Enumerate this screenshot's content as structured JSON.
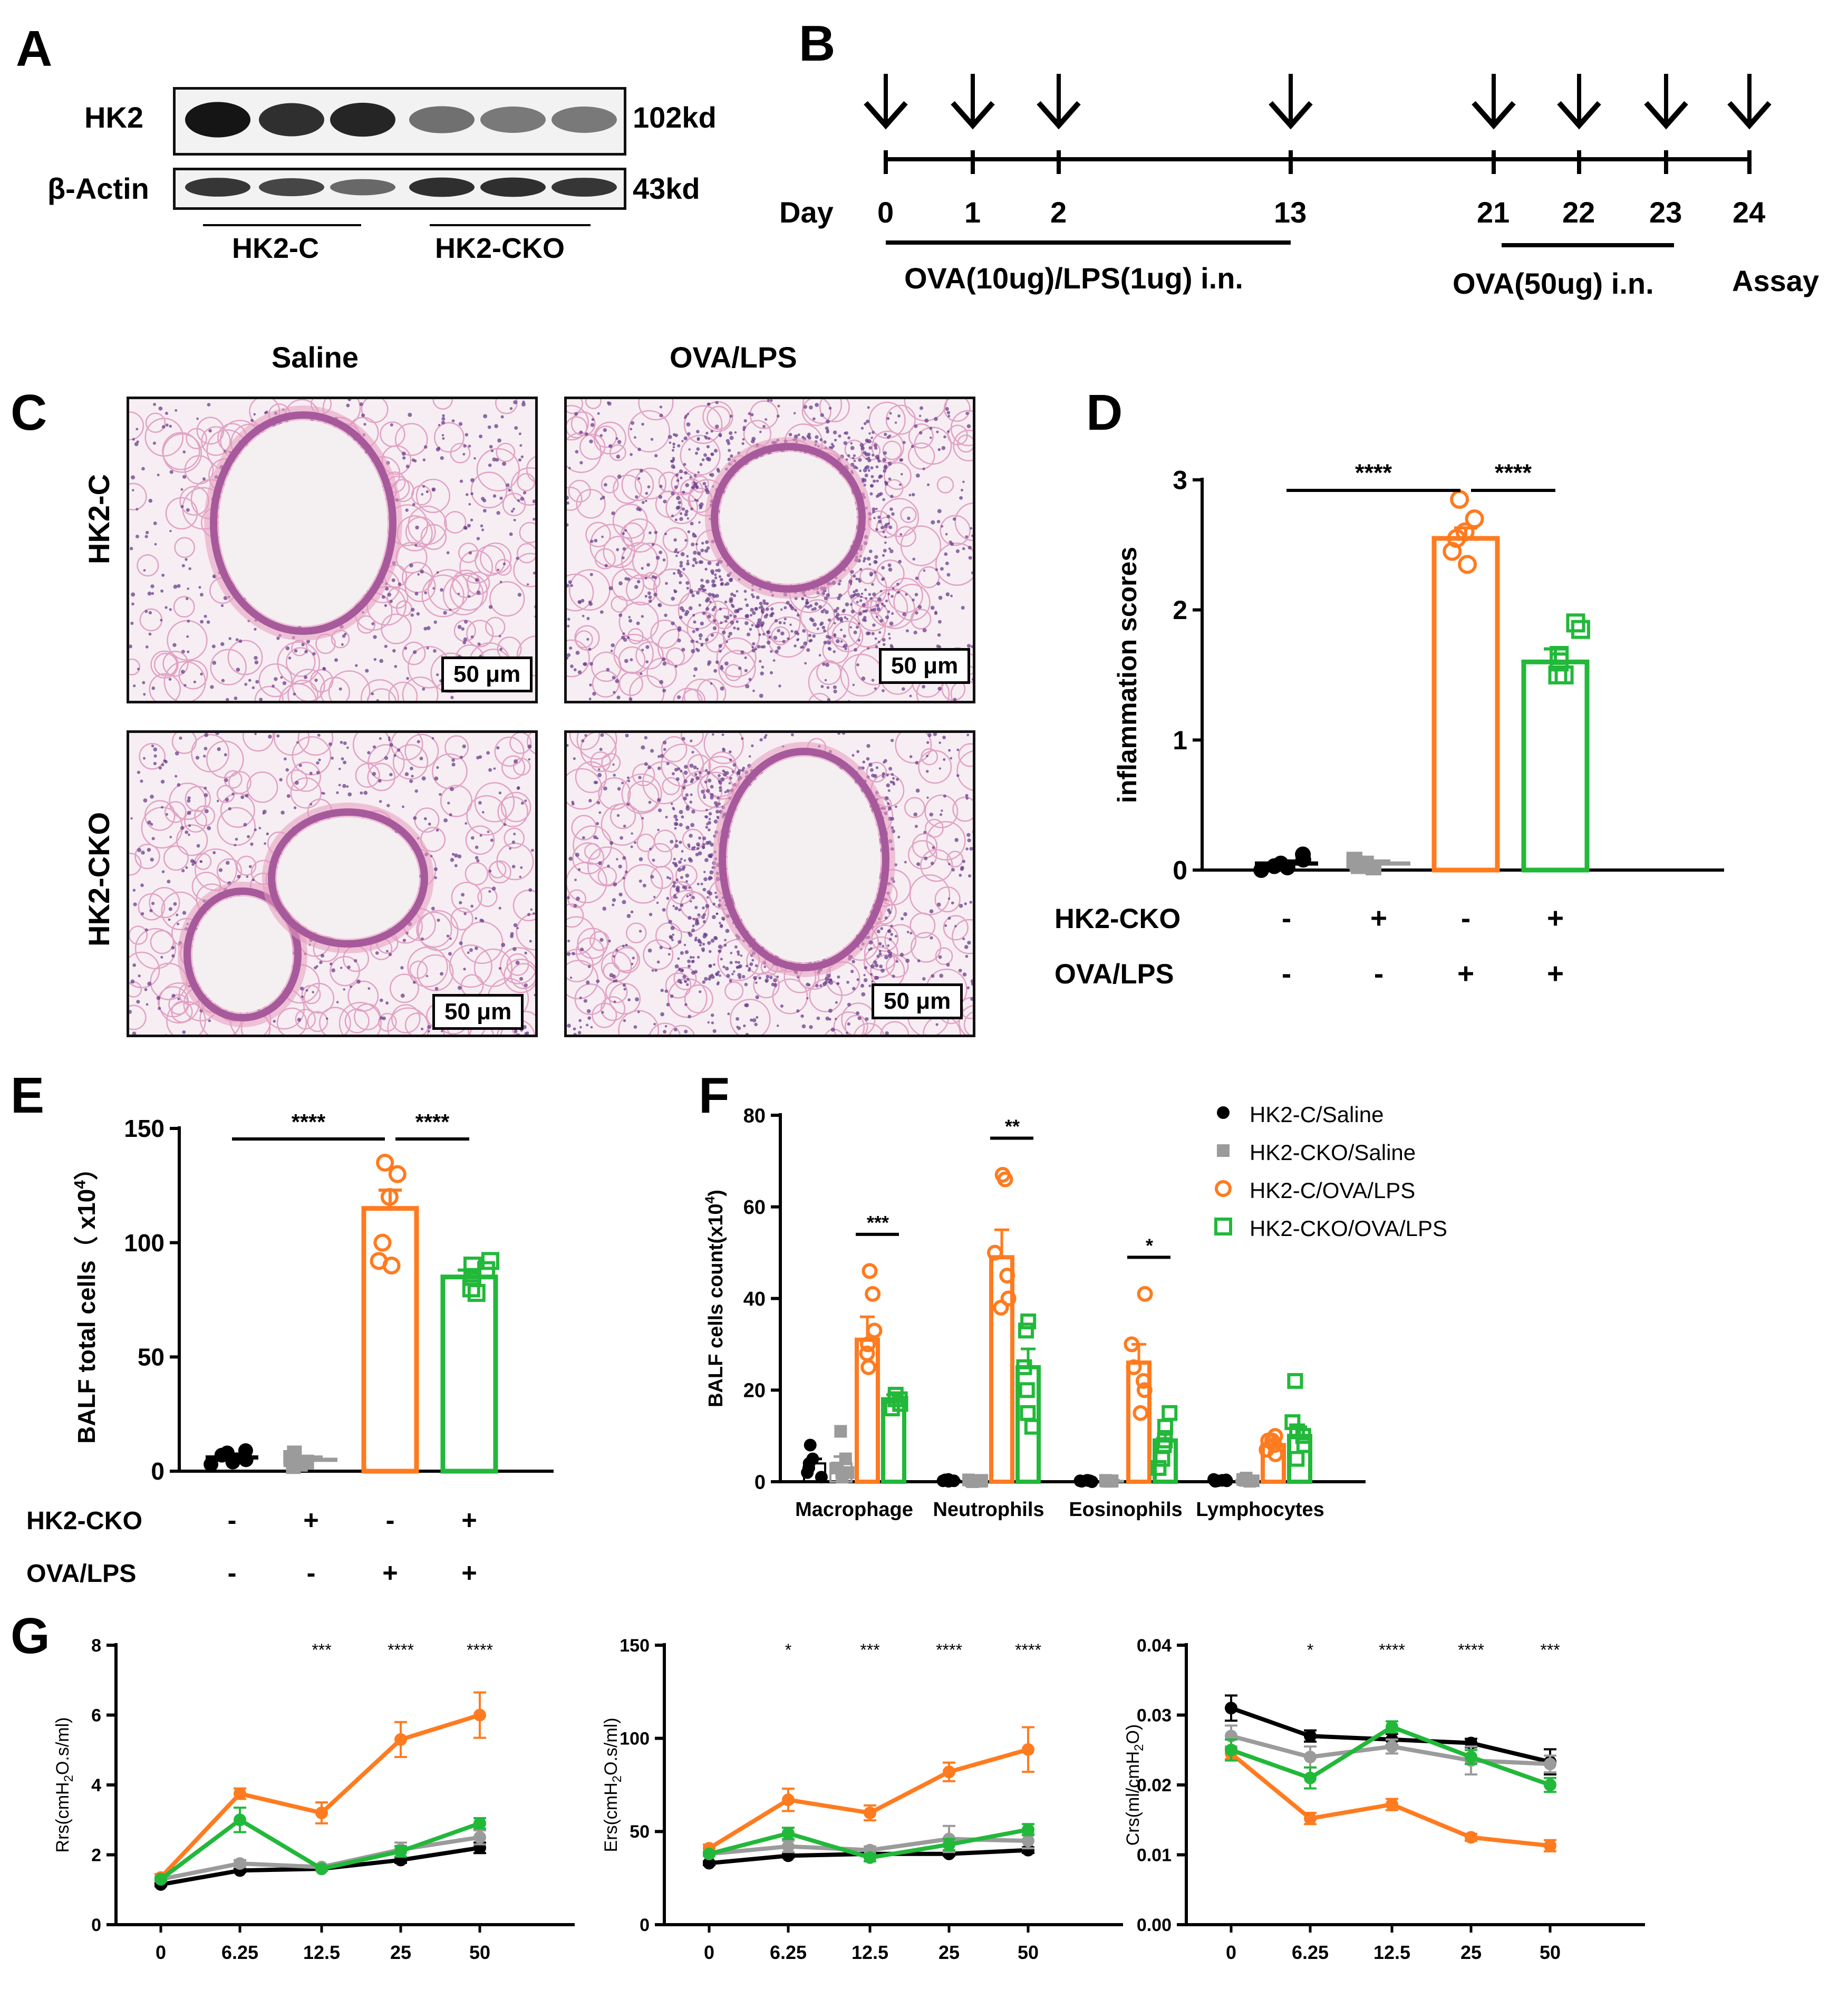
{
  "panels": {
    "a": "A",
    "b": "B",
    "c": "C",
    "d": "D",
    "e": "E",
    "f": "F",
    "g": "G"
  },
  "blot": {
    "rows": [
      {
        "label": "HK2",
        "size": "102kd"
      },
      {
        "label": "β-Actin",
        "size": "43kd"
      }
    ],
    "groups": [
      "HK2-C",
      "HK2-CKO"
    ],
    "band_intensity": {
      "HK2": [
        1.0,
        0.85,
        0.9,
        0.45,
        0.4,
        0.4
      ],
      "beta_actin": [
        0.8,
        0.7,
        0.5,
        0.85,
        0.85,
        0.8
      ]
    }
  },
  "timeline": {
    "day_label": "Day",
    "days": [
      "0",
      "1",
      "2",
      "13",
      "21",
      "22",
      "23",
      "24"
    ],
    "day_values": [
      0,
      1,
      2,
      13,
      21,
      22,
      23,
      24
    ],
    "arrows_on": [
      0,
      1,
      2,
      13,
      21,
      22,
      23,
      24
    ],
    "phase1": "OVA(10ug)/LPS(1ug) i.n.",
    "phase2": "OVA(50ug) i.n.",
    "assay": "Assay"
  },
  "histology": {
    "cols": [
      "Saline",
      "OVA/LPS"
    ],
    "rows": [
      "HK2-C",
      "HK2-CKO"
    ],
    "scale": "50 μm"
  },
  "conditions": {
    "rows": [
      "HK2-CKO",
      "OVA/LPS"
    ],
    "hk2cko": [
      "-",
      "+",
      "-",
      "+"
    ],
    "ovalps": [
      "-",
      "-",
      "+",
      "+"
    ]
  },
  "colors": {
    "hk2c_saline": "#000000",
    "hk2cko_saline": "#9b9b9b",
    "hk2c_ova": "#ff7b1f",
    "hk2cko_ova": "#22b83a"
  },
  "legend": [
    "HK2-C/Saline",
    "HK2-CKO/Saline",
    "HK2-C/OVA/LPS",
    "HK2-CKO/OVA/LPS"
  ],
  "chart_data": [
    {
      "id": "D",
      "type": "bar",
      "ylabel": "inflammation scores",
      "yticks": [
        "0",
        "1",
        "2",
        "3"
      ],
      "ylim": [
        0,
        3
      ],
      "values": [
        0.05,
        0.05,
        2.55,
        1.6
      ],
      "errors": [
        0.02,
        0.02,
        0.08,
        0.1
      ],
      "points": [
        [
          0.0,
          0.05,
          0.08,
          0.02,
          0.12,
          0.03
        ],
        [
          0.05,
          0.08,
          0.03,
          0.02,
          0.07,
          0.05
        ],
        [
          2.85,
          2.7,
          2.55,
          2.45,
          2.35,
          2.6
        ],
        [
          1.85,
          1.9,
          1.65,
          1.5,
          1.5,
          1.6
        ]
      ],
      "sig": [
        {
          "from": 0,
          "to": 2,
          "label": "****"
        },
        {
          "from": 2,
          "to": 3,
          "label": "****"
        }
      ]
    },
    {
      "id": "E",
      "type": "bar",
      "ylabel": "BALF total cells（ x10^4）",
      "yticks": [
        "0",
        "50",
        "100",
        "150"
      ],
      "ylim": [
        0,
        150
      ],
      "values": [
        6,
        5,
        115,
        85
      ],
      "errors": [
        1.5,
        1.2,
        8,
        3
      ],
      "points": [
        [
          3,
          8,
          5,
          4,
          9,
          7
        ],
        [
          2,
          5,
          8,
          4,
          6,
          3
        ],
        [
          135,
          130,
          100,
          92,
          90,
          120
        ],
        [
          92,
          88,
          85,
          80,
          78,
          90
        ]
      ],
      "sig": [
        {
          "from": 0,
          "to": 2,
          "label": "****"
        },
        {
          "from": 2,
          "to": 3,
          "label": "****"
        }
      ]
    },
    {
      "id": "F",
      "type": "bar",
      "ylabel": "BALF cells count(x10^4)",
      "yticks": [
        "0",
        "20",
        "40",
        "60",
        "80"
      ],
      "ylim": [
        0,
        80
      ],
      "categories": [
        "Macrophage",
        "Neutrophils",
        "Eosinophils",
        "Lymphocytes"
      ],
      "series": [
        {
          "name": "HK2-C/Saline",
          "values": [
            4,
            0.3,
            0.2,
            0.3
          ]
        },
        {
          "name": "HK2-CKO/Saline",
          "values": [
            4,
            0.2,
            0.2,
            0.4
          ]
        },
        {
          "name": "HK2-C/OVA/LPS",
          "values": [
            31,
            49,
            26,
            8
          ]
        },
        {
          "name": "HK2-CKO/OVA/LPS",
          "values": [
            18,
            25,
            9,
            10
          ]
        }
      ],
      "errors": [
        [
          1,
          0.1,
          0.1,
          0.1
        ],
        [
          1.5,
          0.1,
          0.1,
          0.2
        ],
        [
          5,
          6,
          4,
          1
        ],
        [
          1,
          4,
          2,
          2
        ]
      ],
      "points": [
        [
          [
            2,
            8,
            3,
            5,
            1,
            4
          ],
          [
            0.1,
            0.3,
            0.5,
            0.2,
            0.4,
            0.2
          ],
          [
            0,
            0.2,
            0.3,
            0.1,
            0.2,
            0.3
          ],
          [
            0.2,
            0.5,
            0.3,
            0.4,
            0.1,
            0.2
          ]
        ],
        [
          [
            2,
            11,
            5,
            3,
            2,
            1
          ],
          [
            0,
            0.2,
            0.3,
            0.1,
            0.2,
            0.4
          ],
          [
            0.1,
            0.2,
            0.3,
            0.2,
            0.1,
            0.2
          ],
          [
            0.1,
            0.8,
            0.5,
            0.3,
            0.4,
            0.2
          ]
        ],
        [
          [
            46,
            41,
            30,
            25,
            28,
            33
          ],
          [
            67,
            66,
            50,
            45,
            40,
            38
          ],
          [
            41,
            30,
            25,
            20,
            15,
            22
          ],
          [
            10,
            9,
            7,
            6,
            8,
            9
          ]
        ],
        [
          [
            18,
            17,
            16,
            18,
            19,
            17
          ],
          [
            35,
            33,
            25,
            15,
            12,
            20
          ],
          [
            15,
            12,
            8,
            5,
            3,
            9
          ],
          [
            22,
            13,
            10,
            8,
            5,
            11
          ]
        ]
      ],
      "sig": [
        {
          "cat": 0,
          "label": "***"
        },
        {
          "cat": 1,
          "label": "**"
        },
        {
          "cat": 2,
          "label": "*"
        }
      ]
    },
    {
      "id": "G1",
      "type": "line",
      "ylabel": "Rrs(cmH2O.s/ml)",
      "xticks": [
        "0",
        "6.25",
        "12.5",
        "25",
        "50"
      ],
      "yticks": [
        "0",
        "2",
        "4",
        "6",
        "8"
      ],
      "ylim": [
        0,
        8
      ],
      "series": [
        {
          "name": "HK2-C/Saline",
          "values": [
            1.15,
            1.55,
            1.6,
            1.85,
            2.2
          ],
          "err": [
            0.05,
            0.05,
            0.05,
            0.08,
            0.15
          ]
        },
        {
          "name": "HK2-CKO/Saline",
          "values": [
            1.3,
            1.75,
            1.65,
            2.15,
            2.5
          ],
          "err": [
            0.05,
            0.1,
            0.05,
            0.2,
            0.2
          ]
        },
        {
          "name": "HK2-C/OVA/LPS",
          "values": [
            1.35,
            3.75,
            3.2,
            5.3,
            6.0
          ],
          "err": [
            0.1,
            0.15,
            0.3,
            0.5,
            0.65
          ]
        },
        {
          "name": "HK2-CKO/OVA/LPS",
          "values": [
            1.3,
            3.0,
            1.6,
            2.1,
            2.9
          ],
          "err": [
            0.05,
            0.35,
            0.05,
            0.15,
            0.15
          ]
        }
      ],
      "sig": [
        "",
        "",
        "***",
        "****",
        "****"
      ]
    },
    {
      "id": "G2",
      "type": "line",
      "ylabel": "Ers(cmH2O.s/ml)",
      "xticks": [
        "0",
        "6.25",
        "12.5",
        "25",
        "50"
      ],
      "yticks": [
        "0",
        "50",
        "100",
        "150"
      ],
      "ylim": [
        0,
        150
      ],
      "series": [
        {
          "name": "HK2-C/Saline",
          "values": [
            33,
            37,
            38,
            38,
            40
          ],
          "err": [
            1,
            1,
            1,
            1,
            1.5
          ]
        },
        {
          "name": "HK2-CKO/Saline",
          "values": [
            38,
            42,
            40,
            46,
            45
          ],
          "err": [
            1,
            3,
            2,
            7,
            4
          ]
        },
        {
          "name": "HK2-C/OVA/LPS",
          "values": [
            41,
            67,
            60,
            82,
            94
          ],
          "err": [
            2,
            6,
            4,
            5,
            12
          ]
        },
        {
          "name": "HK2-CKO/OVA/LPS",
          "values": [
            38,
            49,
            36,
            43,
            51
          ],
          "err": [
            1,
            3,
            2,
            3,
            3
          ]
        }
      ],
      "sig": [
        "",
        "*",
        "***",
        "****",
        "****"
      ]
    },
    {
      "id": "G3",
      "type": "line",
      "ylabel": "Crs(ml/cmH2O)",
      "xticks": [
        "0",
        "6.25",
        "12.5",
        "25",
        "50"
      ],
      "yticks": [
        "0.00",
        "0.01",
        "0.02",
        "0.03",
        "0.04"
      ],
      "ylim": [
        0,
        0.04
      ],
      "series": [
        {
          "name": "HK2-C/Saline",
          "values": [
            0.031,
            0.027,
            0.0265,
            0.026,
            0.0233
          ],
          "err": [
            0.0018,
            0.0008,
            0.0008,
            0.0006,
            0.0018
          ]
        },
        {
          "name": "HK2-CKO/Saline",
          "values": [
            0.027,
            0.024,
            0.0255,
            0.0235,
            0.023
          ],
          "err": [
            0.0015,
            0.0015,
            0.001,
            0.002,
            0.0012
          ]
        },
        {
          "name": "HK2-C/OVA/LPS",
          "values": [
            0.0245,
            0.0152,
            0.0172,
            0.0125,
            0.0113
          ],
          "err": [
            0.0008,
            0.0008,
            0.0008,
            0.0005,
            0.0008
          ]
        },
        {
          "name": "HK2-CKO/OVA/LPS",
          "values": [
            0.025,
            0.021,
            0.0283,
            0.024,
            0.02
          ],
          "err": [
            0.0015,
            0.0015,
            0.0008,
            0.001,
            0.001
          ]
        }
      ],
      "sig": [
        "",
        "*",
        "****",
        "****",
        "***"
      ]
    }
  ]
}
